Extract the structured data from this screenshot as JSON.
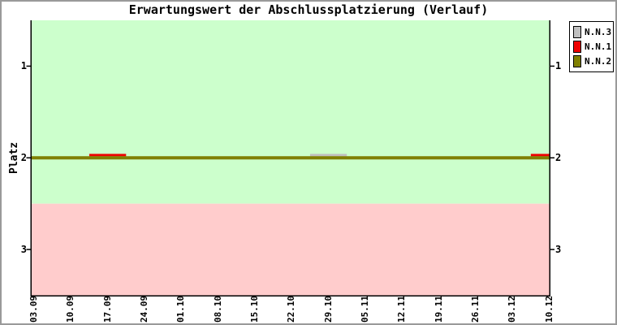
{
  "frame": {
    "border_color": "#9a9a9a",
    "background_color": "#ffffff"
  },
  "chart_data": {
    "type": "line",
    "title": "Erwartungswert der Abschlussplatzierung (Verlauf)",
    "ylabel": "Platz",
    "xlabel": "",
    "x_categories": [
      "03.09",
      "10.09",
      "17.09",
      "24.09",
      "01.10",
      "08.10",
      "15.10",
      "22.10",
      "29.10",
      "05.11",
      "12.11",
      "19.11",
      "26.11",
      "03.12",
      "10.12"
    ],
    "y_ticks": [
      1,
      2,
      3
    ],
    "ylim": [
      0.5,
      3.5
    ],
    "y_axis_inverted": true,
    "secondary_y_axis_right": true,
    "grid": false,
    "legend_position": "top-right-outside",
    "line_style": "step-constant",
    "bands": [
      {
        "label": "upper-green-zone",
        "from": 0.5,
        "to": 2.5,
        "color": "#ccffcc"
      },
      {
        "label": "lower-pink-zone",
        "from": 2.5,
        "to": 3.5,
        "color": "#ffcccc"
      }
    ],
    "series": [
      {
        "name": "N.N.3",
        "color": "#c0c0c0",
        "values": [
          2,
          2,
          2,
          2,
          2,
          2,
          2,
          2,
          1.97,
          2,
          2,
          2,
          2,
          2,
          2
        ]
      },
      {
        "name": "N.N.1",
        "color": "#ee0000",
        "values": [
          2,
          2,
          1.97,
          2,
          2,
          2,
          2,
          2,
          2,
          2,
          2,
          2,
          2,
          2,
          1.97
        ]
      },
      {
        "name": "N.N.2",
        "color": "#808000",
        "values": [
          2,
          2,
          2,
          2,
          2,
          2,
          2,
          2,
          2,
          2,
          2,
          2,
          2,
          2,
          2
        ]
      }
    ]
  }
}
